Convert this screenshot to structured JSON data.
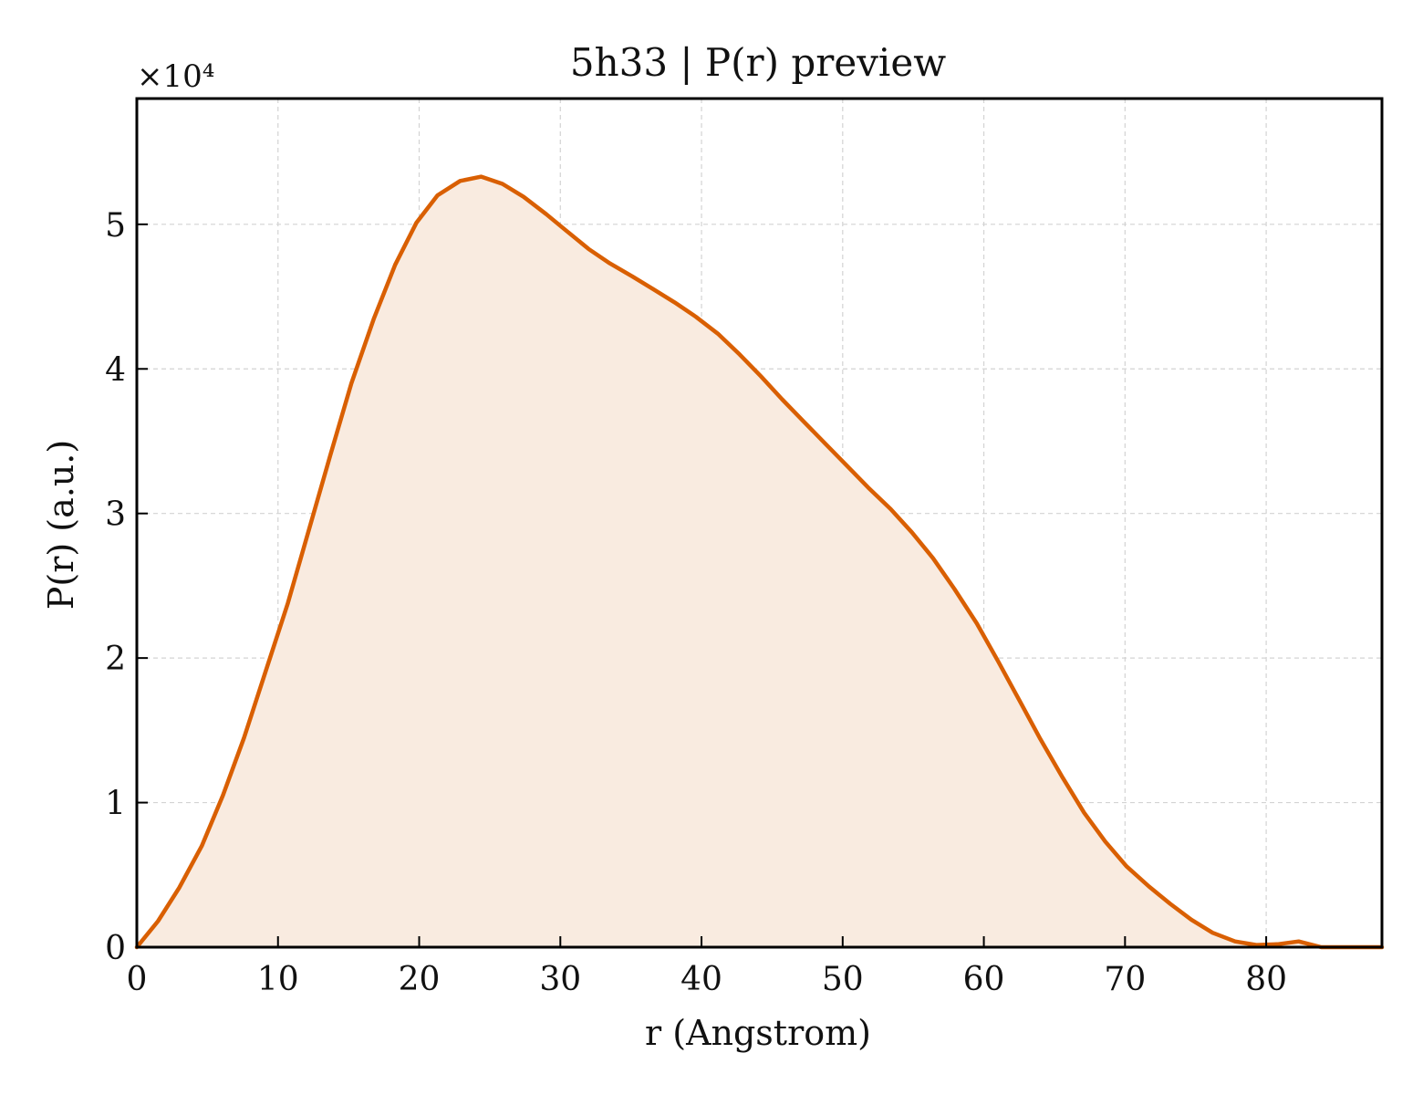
{
  "chart_data": {
    "type": "area",
    "title": "5h33 | P(r) preview",
    "xlabel": "r (Angstrom)",
    "ylabel": "P(r) (a.u.)",
    "y_multiplier_label": "×10⁴",
    "xlim": [
      0,
      88.2
    ],
    "ylim": [
      0,
      58700
    ],
    "xticks": [
      0,
      10,
      20,
      30,
      40,
      50,
      60,
      70,
      80
    ],
    "yticks": [
      0,
      10000,
      20000,
      30000,
      40000,
      50000
    ],
    "ytick_labels": [
      "0",
      "1",
      "2",
      "3",
      "4",
      "5"
    ],
    "grid": true,
    "line_color": "#d95f02",
    "fill_color": "#f9ebe0",
    "x": [
      0,
      1.5,
      3.0,
      4.6,
      6.1,
      7.6,
      9.1,
      10.7,
      12.2,
      13.7,
      15.2,
      16.8,
      18.3,
      19.8,
      21.3,
      22.9,
      24.4,
      25.9,
      27.4,
      29.0,
      30.5,
      32.0,
      33.5,
      35.1,
      36.6,
      38.1,
      39.6,
      41.2,
      42.7,
      44.2,
      45.7,
      47.3,
      48.8,
      50.3,
      51.8,
      53.4,
      54.9,
      56.4,
      57.9,
      59.5,
      61.0,
      62.5,
      64.0,
      65.6,
      67.1,
      68.6,
      70.1,
      71.7,
      73.2,
      74.7,
      76.2,
      77.8,
      79.3,
      80.8,
      82.3,
      83.9,
      85.4,
      86.9,
      88.2
    ],
    "y": [
      0,
      1800,
      4100,
      7000,
      10500,
      14500,
      19000,
      23800,
      28900,
      34000,
      39000,
      43500,
      47200,
      50100,
      52000,
      53000,
      53300,
      52800,
      51900,
      50700,
      49500,
      48300,
      47300,
      46400,
      45500,
      44600,
      43600,
      42400,
      41000,
      39500,
      37900,
      36300,
      34800,
      33300,
      31800,
      30300,
      28700,
      26900,
      24800,
      22400,
      19800,
      17100,
      14400,
      11700,
      9300,
      7300,
      5600,
      4200,
      3000,
      1900,
      1000,
      400,
      150,
      200,
      400,
      0,
      0,
      0,
      0
    ]
  }
}
